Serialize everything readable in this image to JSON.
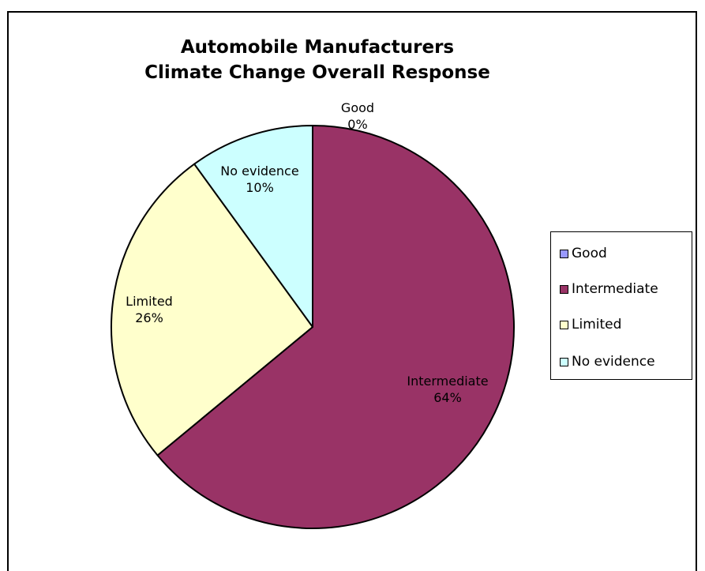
{
  "chart_data": {
    "type": "pie",
    "title": [
      "Automobile Manufacturers",
      "Climate Change Overall Response"
    ],
    "categories": [
      "Good",
      "Intermediate",
      "Limited",
      "No evidence"
    ],
    "values": [
      0,
      64,
      26,
      10
    ],
    "value_labels": [
      "0%",
      "64%",
      "26%",
      "10%"
    ],
    "colors": [
      "#9999FF",
      "#993366",
      "#FFFFCC",
      "#CCFFFF"
    ],
    "legend": {
      "placement": "right",
      "entries": [
        "Good",
        "Intermediate",
        "Limited",
        "No evidence"
      ]
    }
  }
}
